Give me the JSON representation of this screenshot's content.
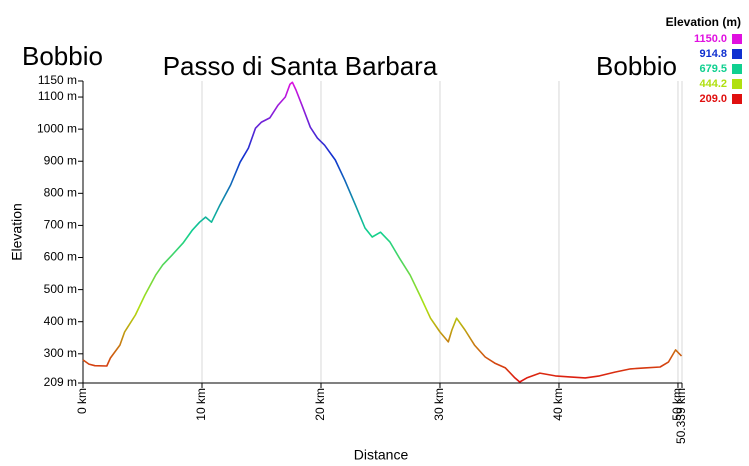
{
  "chart_data": {
    "type": "line",
    "title": "Passo di Santa Barbara",
    "start_label": "Bobbio",
    "end_label": "Bobbio",
    "x_label": "Distance",
    "y_label": "Elevation",
    "legend_title": "Elevation (m)",
    "color_scale": [
      {
        "value": 1150,
        "label": "1150.0",
        "color": "#e010e0"
      },
      {
        "value": 914.8,
        "label": "914.8",
        "color": "#1030d0"
      },
      {
        "value": 679.5,
        "label": "679.5",
        "color": "#10d090"
      },
      {
        "value": 444.2,
        "label": "444.2",
        "color": "#b0e010"
      },
      {
        "value": 209,
        "label": "209.0",
        "color": "#e01010"
      }
    ],
    "xlim": [
      0,
      50.339
    ],
    "ylim": [
      209,
      1150
    ],
    "xticks": [
      {
        "value": 0,
        "label": "0 km"
      },
      {
        "value": 10,
        "label": "10 km"
      },
      {
        "value": 20,
        "label": "20 km"
      },
      {
        "value": 30,
        "label": "30 km"
      },
      {
        "value": 40,
        "label": "40 km"
      },
      {
        "value": 50,
        "label": "50 km"
      },
      {
        "value": 50.339,
        "label": "50.339 km"
      }
    ],
    "yticks": [
      {
        "value": 209,
        "label": "209 m"
      },
      {
        "value": 300,
        "label": "300 m"
      },
      {
        "value": 400,
        "label": "400 m"
      },
      {
        "value": 500,
        "label": "500 m"
      },
      {
        "value": 600,
        "label": "600 m"
      },
      {
        "value": 700,
        "label": "700 m"
      },
      {
        "value": 800,
        "label": "800 m"
      },
      {
        "value": 900,
        "label": "900 m"
      },
      {
        "value": 1000,
        "label": "1000 m"
      },
      {
        "value": 1100,
        "label": "1100 m"
      },
      {
        "value": 1150,
        "label": "1150 m"
      }
    ],
    "grid": true,
    "x": [
      0,
      0.5,
      1,
      2,
      2.3,
      3.1,
      3.5,
      4.4,
      5.2,
      6.1,
      6.7,
      7.5,
      8.4,
      9.2,
      9.8,
      10.3,
      10.8,
      11.5,
      12.4,
      13.2,
      13.9,
      14.5,
      15.0,
      15.7,
      16.4,
      17.0,
      17.4,
      17.6,
      17.9,
      18.4,
      19.1,
      19.7,
      20.3,
      21.2,
      22.0,
      22.9,
      23.7,
      24.3,
      25.0,
      25.8,
      26.6,
      27.5,
      28.3,
      29.2,
      30.0,
      30.7,
      31.0,
      31.4,
      32.1,
      32.9,
      33.8,
      34.6,
      35.5,
      36.3,
      36.7,
      37.3,
      38.4,
      39.7,
      40.9,
      42.2,
      43.4,
      44.7,
      46.0,
      47.2,
      48.5,
      49.2,
      49.8,
      50.3
    ],
    "values": [
      281,
      268,
      263,
      262,
      287,
      327,
      368,
      421,
      483,
      545,
      577,
      608,
      645,
      686,
      710,
      726,
      710,
      763,
      826,
      897,
      941,
      1003,
      1022,
      1035,
      1075,
      1100,
      1140,
      1146,
      1122,
      1075,
      1006,
      972,
      950,
      904,
      841,
      763,
      692,
      664,
      679,
      648,
      598,
      545,
      483,
      411,
      368,
      337,
      374,
      411,
      374,
      327,
      290,
      271,
      256,
      225,
      212,
      225,
      240,
      231,
      228,
      225,
      231,
      243,
      253,
      256,
      259,
      274,
      312,
      293
    ]
  }
}
